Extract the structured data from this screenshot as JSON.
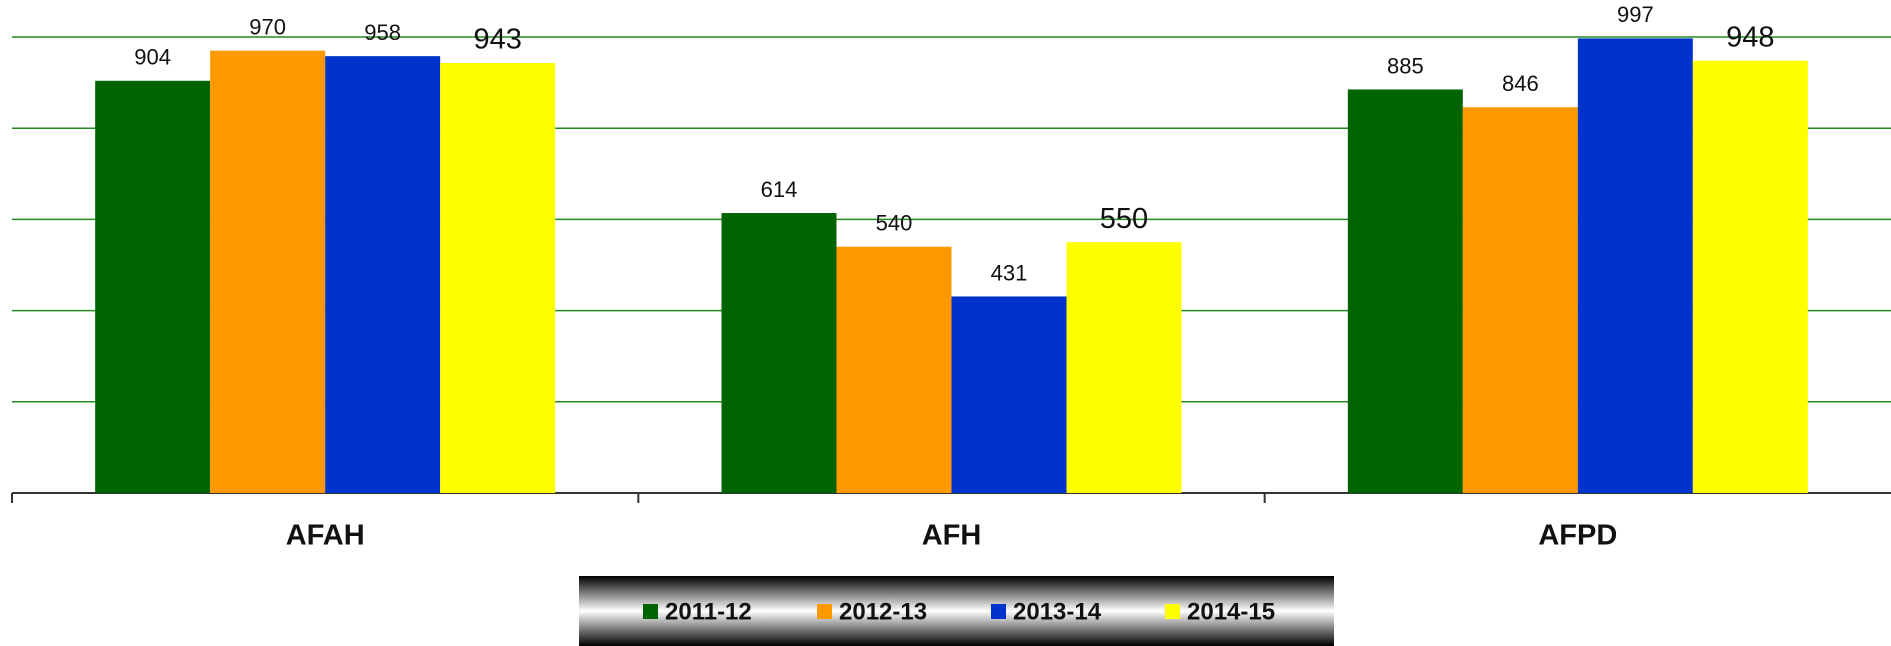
{
  "chart_data": {
    "type": "bar",
    "categories": [
      "AFAH",
      "AFH",
      "AFPD"
    ],
    "series": [
      {
        "name": "2011-12",
        "color": "#006400",
        "values": [
          904,
          614,
          885
        ]
      },
      {
        "name": "2012-13",
        "color": "#ff9900",
        "values": [
          970,
          540,
          846
        ]
      },
      {
        "name": "2013-14",
        "color": "#0033cc",
        "values": [
          958,
          431,
          997
        ]
      },
      {
        "name": "2014-15",
        "color": "#ffff00",
        "values": [
          943,
          550,
          948
        ]
      }
    ],
    "ylim": [
      0,
      1000
    ],
    "yticks": [
      0,
      200,
      400,
      600,
      800,
      1000
    ],
    "grid": true,
    "grid_color": "#228b22",
    "legend": "bottom"
  }
}
